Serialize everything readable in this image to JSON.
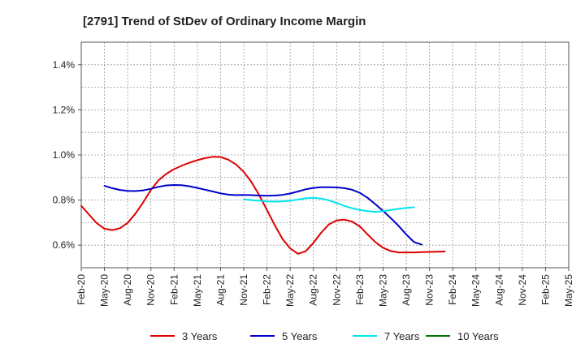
{
  "chart_data": {
    "type": "line",
    "title": "[2791]  Trend of StDev of Ordinary Income Margin",
    "xlabel": "",
    "ylabel": "",
    "ylim": [
      0.5,
      1.5
    ],
    "y_ticks": [
      0.6,
      0.8,
      1.0,
      1.2,
      1.4
    ],
    "y_tick_labels": [
      "0.6%",
      "0.8%",
      "1.0%",
      "1.2%",
      "1.4%"
    ],
    "x_tick_labels": [
      "Feb-20",
      "May-20",
      "Aug-20",
      "Nov-20",
      "Feb-21",
      "May-21",
      "Aug-21",
      "Nov-21",
      "Feb-22",
      "May-22",
      "Aug-22",
      "Nov-22",
      "Feb-23",
      "May-23",
      "Aug-23",
      "Nov-23",
      "Feb-24",
      "May-24",
      "Aug-24",
      "Nov-24",
      "Feb-25",
      "May-25"
    ],
    "grid": true,
    "legend_position": "bottom",
    "series": [
      {
        "name": "3 Years",
        "color": "#dd0000",
        "values": [
          0.775,
          0.736,
          0.698,
          0.673,
          0.667,
          0.675,
          0.699,
          0.74,
          0.79,
          0.845,
          0.888,
          0.917,
          0.937,
          0.953,
          0.966,
          0.977,
          0.986,
          0.992,
          0.991,
          0.979,
          0.958,
          0.925,
          0.88,
          0.822,
          0.756,
          0.689,
          0.628,
          0.586,
          0.562,
          0.573,
          0.61,
          0.655,
          0.692,
          0.71,
          0.713,
          0.705,
          0.683,
          0.648,
          0.614,
          0.589,
          0.574,
          0.568,
          0.568,
          0.568,
          0.569,
          0.57,
          0.571,
          0.572
        ]
      },
      {
        "name": "5 Years",
        "color": "#0000cc",
        "values": [
          null,
          null,
          null,
          0.863,
          0.853,
          0.845,
          0.841,
          0.84,
          0.843,
          0.85,
          0.859,
          0.865,
          0.867,
          0.866,
          0.861,
          0.854,
          0.846,
          0.838,
          0.83,
          0.824,
          0.822,
          0.823,
          0.822,
          0.82,
          0.819,
          0.82,
          0.823,
          0.829,
          0.838,
          0.848,
          0.854,
          0.857,
          0.857,
          0.856,
          0.853,
          0.846,
          0.832,
          0.81,
          0.782,
          0.752,
          0.72,
          0.686,
          0.648,
          0.614,
          0.603
        ]
      },
      {
        "name": "7 Years",
        "color": "#00e5ee",
        "values": [
          null,
          null,
          null,
          null,
          null,
          null,
          null,
          null,
          null,
          null,
          null,
          null,
          null,
          null,
          null,
          null,
          null,
          null,
          null,
          null,
          null,
          0.803,
          0.8,
          0.797,
          0.794,
          0.793,
          0.794,
          0.797,
          0.802,
          0.808,
          0.81,
          0.807,
          0.799,
          0.787,
          0.774,
          0.764,
          0.756,
          0.751,
          0.748,
          0.751,
          0.756,
          0.761,
          0.765,
          0.768
        ]
      },
      {
        "name": "10 Years",
        "color": "#007700",
        "values": []
      }
    ]
  }
}
